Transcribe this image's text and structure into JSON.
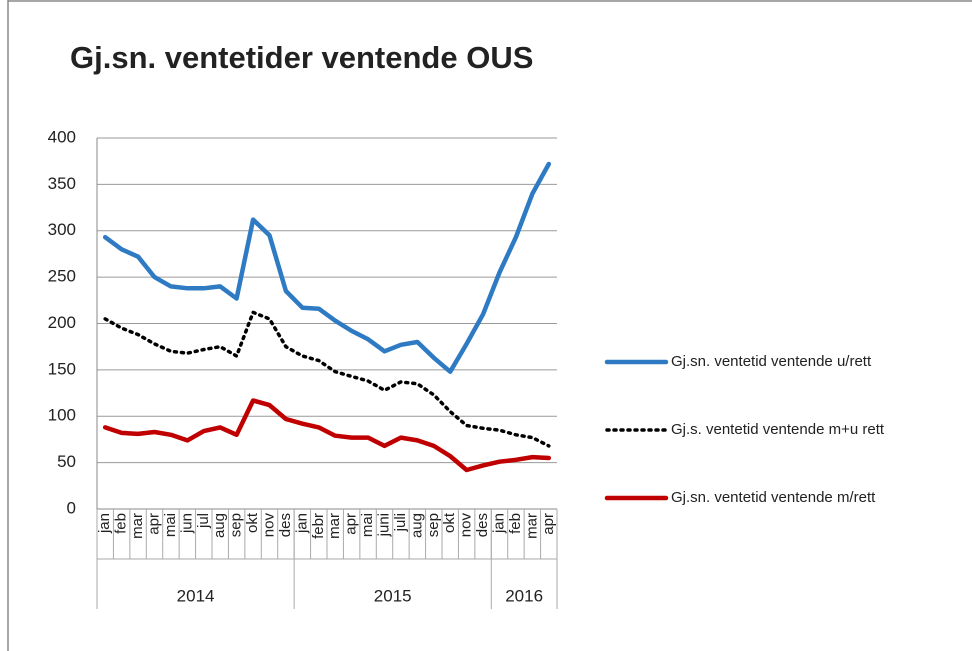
{
  "chart_data": {
    "type": "line",
    "title": "Gj.sn. ventetider ventende OUS",
    "groups": [
      {
        "label": "2014",
        "categories": [
          "jan",
          "feb",
          "mar",
          "apr",
          "mai",
          "jun",
          "jul",
          "aug",
          "sep",
          "okt",
          "nov",
          "des"
        ]
      },
      {
        "label": "2015",
        "categories": [
          "jan",
          "febr",
          "mar",
          "apr",
          "mai",
          "juni",
          "juli",
          "aug",
          "sep",
          "okt",
          "nov",
          "des"
        ]
      },
      {
        "label": "2016",
        "categories": [
          "jan",
          "feb",
          "mar",
          "apr"
        ]
      }
    ],
    "series": [
      {
        "name": "Gj.sn. ventetid ventende u/rett",
        "color": "#2e7bc4",
        "style": "solid",
        "values": [
          293,
          280,
          272,
          250,
          240,
          238,
          238,
          240,
          227,
          312,
          295,
          235,
          217,
          216,
          203,
          192,
          183,
          170,
          177,
          180,
          163,
          148,
          178,
          210,
          255,
          293,
          340,
          372
        ]
      },
      {
        "name": "Gj.s. ventetid ventende m+u rett",
        "color": "#000000",
        "style": "dotted",
        "values": [
          205,
          195,
          188,
          178,
          170,
          168,
          172,
          175,
          165,
          212,
          205,
          175,
          165,
          160,
          148,
          143,
          138,
          128,
          137,
          135,
          123,
          105,
          90,
          87,
          85,
          80,
          77,
          68
        ]
      },
      {
        "name": "Gj.sn. ventetid ventende m/rett",
        "color": "#c00000",
        "style": "solid",
        "values": [
          88,
          82,
          81,
          83,
          80,
          74,
          84,
          88,
          80,
          117,
          112,
          97,
          92,
          88,
          79,
          77,
          77,
          68,
          77,
          74,
          68,
          57,
          42,
          47,
          51,
          53,
          56,
          55
        ]
      }
    ],
    "ylim": [
      0,
      400
    ],
    "yticks": [
      0,
      50,
      100,
      150,
      200,
      250,
      300,
      350,
      400
    ],
    "grid": true,
    "legend": "right"
  }
}
